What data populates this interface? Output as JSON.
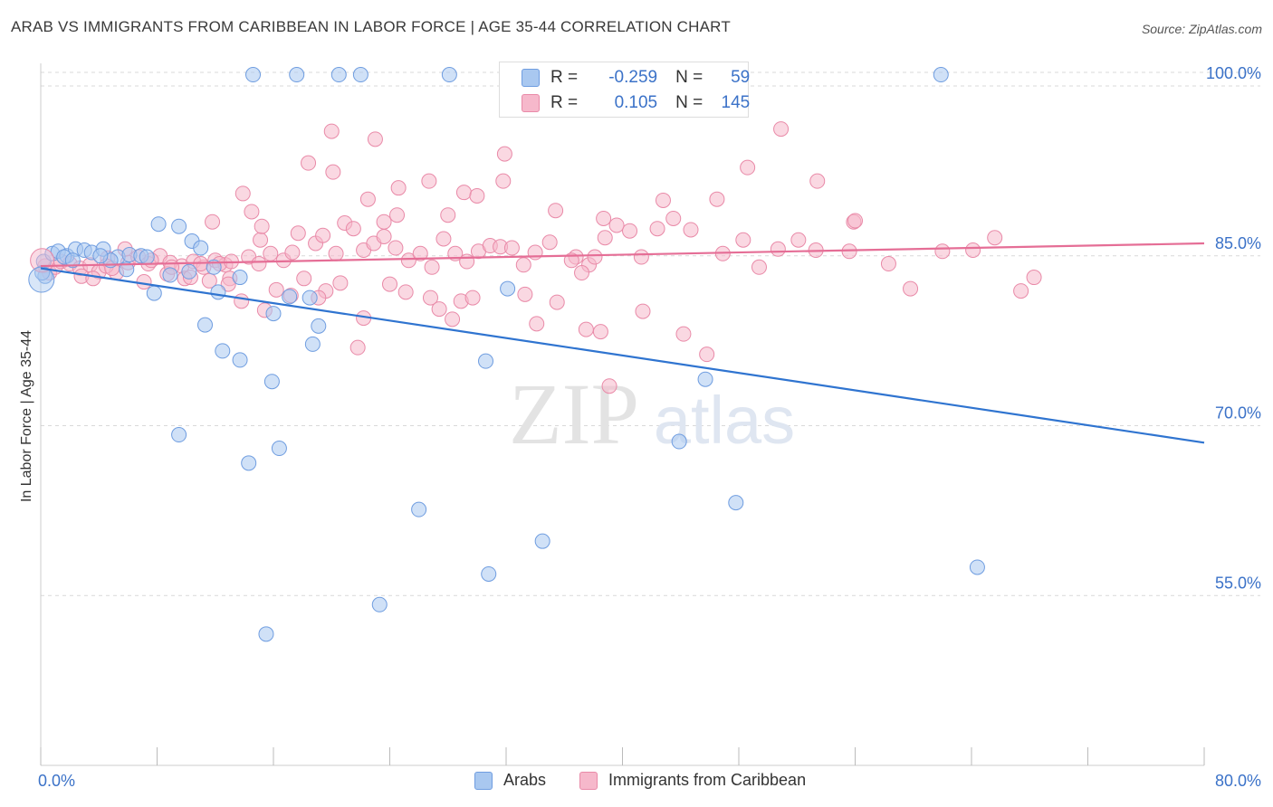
{
  "title": "ARAB VS IMMIGRANTS FROM CARIBBEAN IN LABOR FORCE | AGE 35-44 CORRELATION CHART",
  "source": "Source: ZipAtlas.com",
  "watermark": {
    "bold": "ZIP",
    "light": "atlas"
  },
  "colors": {
    "arab_fill": "#a9c8f0",
    "arab_stroke": "#6f9de0",
    "arab_line": "#2f74d0",
    "carib_fill": "#f6b8cb",
    "carib_stroke": "#e98aa8",
    "carib_line": "#e56e96",
    "tick_label": "#3b72c8",
    "grid": "#d9d9d9"
  },
  "stats_legend": [
    {
      "r_label": "R =",
      "r": "-0.259",
      "n_label": "N =",
      "n": "59",
      "series": "Arabs"
    },
    {
      "r_label": "R =",
      "r": "0.105",
      "n_label": "N =",
      "n": "145",
      "series": "Immigrants from Caribbean"
    }
  ],
  "chart_data": {
    "type": "scatter",
    "title": "ARAB VS IMMIGRANTS FROM CARIBBEAN IN LABOR FORCE | AGE 35-44 CORRELATION CHART",
    "xlabel": "",
    "ylabel": "In Labor Force | Age 35-44",
    "xlim": [
      0,
      80
    ],
    "ylim": [
      40,
      102
    ],
    "x_tick_labels": [
      "0.0%",
      "80.0%"
    ],
    "y_ticks": [
      55,
      70,
      85,
      100
    ],
    "y_tick_labels": [
      "55.0%",
      "70.0%",
      "85.0%",
      "100.0%"
    ],
    "grid": "horizontal dashed",
    "legend_position": "bottom",
    "series": [
      {
        "name": "Arabs",
        "trend": {
          "x": [
            0,
            80
          ],
          "y": [
            83.9,
            68.5
          ]
        },
        "points": [
          [
            0.2,
            84.5
          ],
          [
            0.3,
            83.2
          ],
          [
            0.8,
            85.2
          ],
          [
            1.2,
            85.4
          ],
          [
            1.8,
            85.0
          ],
          [
            2.4,
            85.6
          ],
          [
            3.0,
            85.5
          ],
          [
            3.5,
            85.3
          ],
          [
            4.3,
            85.6
          ],
          [
            5.3,
            84.9
          ],
          [
            6.1,
            85.1
          ],
          [
            6.9,
            85.0
          ],
          [
            8.1,
            87.8
          ],
          [
            9.5,
            87.6
          ],
          [
            10.4,
            86.3
          ],
          [
            4.8,
            84.6
          ],
          [
            5.9,
            83.8
          ],
          [
            7.3,
            84.9
          ],
          [
            8.9,
            83.3
          ],
          [
            10.2,
            83.6
          ],
          [
            11.0,
            85.7
          ],
          [
            11.9,
            84.0
          ],
          [
            13.7,
            83.1
          ],
          [
            7.8,
            81.7
          ],
          [
            12.2,
            81.8
          ],
          [
            17.1,
            81.4
          ],
          [
            18.5,
            81.3
          ],
          [
            16.0,
            79.9
          ],
          [
            11.3,
            78.9
          ],
          [
            19.1,
            78.8
          ],
          [
            18.7,
            77.2
          ],
          [
            12.5,
            76.6
          ],
          [
            13.7,
            75.8
          ],
          [
            15.9,
            73.9
          ],
          [
            30.6,
            75.7
          ],
          [
            45.7,
            74.1
          ],
          [
            32.1,
            82.1
          ],
          [
            9.5,
            69.2
          ],
          [
            16.4,
            68.0
          ],
          [
            14.3,
            66.7
          ],
          [
            43.9,
            68.6
          ],
          [
            47.8,
            63.2
          ],
          [
            26.0,
            62.6
          ],
          [
            34.5,
            59.8
          ],
          [
            30.8,
            56.9
          ],
          [
            64.4,
            57.5
          ],
          [
            23.3,
            54.2
          ],
          [
            15.5,
            51.6
          ],
          [
            14.6,
            101.0
          ],
          [
            17.6,
            101.0
          ],
          [
            20.5,
            101.0
          ],
          [
            22.0,
            101.0
          ],
          [
            28.1,
            101.0
          ],
          [
            47.0,
            101.0
          ],
          [
            61.9,
            101.0
          ],
          [
            1.6,
            84.9
          ],
          [
            2.2,
            84.6
          ],
          [
            4.1,
            85.0
          ],
          [
            0.1,
            83.5
          ]
        ]
      },
      {
        "name": "Immigrants from Caribbean",
        "trend": {
          "x": [
            0,
            80
          ],
          "y": [
            84.1,
            86.1
          ]
        },
        "points": [
          [
            0.3,
            84.1
          ],
          [
            0.6,
            83.5
          ],
          [
            1.0,
            84.0
          ],
          [
            1.4,
            84.5
          ],
          [
            2.0,
            84.3
          ],
          [
            2.7,
            83.9
          ],
          [
            3.4,
            84.2
          ],
          [
            4.0,
            83.6
          ],
          [
            4.6,
            84.8
          ],
          [
            5.2,
            83.5
          ],
          [
            6.0,
            84.4
          ],
          [
            6.7,
            84.9
          ],
          [
            7.4,
            84.3
          ],
          [
            8.2,
            85.0
          ],
          [
            8.9,
            84.4
          ],
          [
            9.7,
            84.1
          ],
          [
            10.5,
            84.5
          ],
          [
            11.2,
            84.0
          ],
          [
            12.0,
            84.6
          ],
          [
            12.7,
            84.2
          ],
          [
            2.8,
            83.2
          ],
          [
            3.6,
            83.0
          ],
          [
            4.5,
            84.1
          ],
          [
            5.8,
            85.6
          ],
          [
            7.1,
            82.7
          ],
          [
            8.7,
            83.4
          ],
          [
            9.9,
            83.0
          ],
          [
            11.6,
            82.8
          ],
          [
            12.3,
            84.3
          ],
          [
            13.1,
            84.5
          ],
          [
            14.3,
            84.9
          ],
          [
            15.1,
            86.4
          ],
          [
            15.8,
            85.2
          ],
          [
            16.7,
            84.6
          ],
          [
            17.3,
            85.3
          ],
          [
            18.1,
            83.0
          ],
          [
            18.9,
            86.1
          ],
          [
            19.6,
            81.9
          ],
          [
            20.3,
            85.2
          ],
          [
            20.9,
            87.9
          ],
          [
            21.5,
            87.4
          ],
          [
            22.2,
            85.5
          ],
          [
            22.9,
            86.1
          ],
          [
            23.6,
            86.7
          ],
          [
            24.4,
            85.7
          ],
          [
            25.3,
            84.6
          ],
          [
            26.1,
            85.2
          ],
          [
            26.9,
            84.0
          ],
          [
            27.7,
            86.5
          ],
          [
            28.5,
            85.2
          ],
          [
            29.3,
            84.5
          ],
          [
            30.1,
            85.4
          ],
          [
            30.9,
            85.9
          ],
          [
            31.6,
            85.8
          ],
          [
            32.4,
            85.7
          ],
          [
            33.2,
            84.2
          ],
          [
            34.0,
            85.3
          ],
          [
            35.0,
            86.2
          ],
          [
            36.8,
            84.9
          ],
          [
            37.7,
            84.2
          ],
          [
            38.8,
            86.6
          ],
          [
            39.6,
            87.7
          ],
          [
            40.5,
            87.2
          ],
          [
            41.3,
            84.9
          ],
          [
            42.4,
            87.4
          ],
          [
            43.5,
            88.3
          ],
          [
            44.7,
            87.3
          ],
          [
            46.9,
            85.2
          ],
          [
            48.3,
            86.4
          ],
          [
            49.4,
            84.0
          ],
          [
            50.7,
            85.6
          ],
          [
            52.1,
            86.4
          ],
          [
            53.3,
            85.5
          ],
          [
            55.9,
            88.0
          ],
          [
            58.3,
            84.3
          ],
          [
            62.0,
            85.4
          ],
          [
            65.6,
            86.6
          ],
          [
            68.3,
            83.1
          ],
          [
            13.9,
            90.5
          ],
          [
            17.7,
            87.0
          ],
          [
            19.4,
            86.8
          ],
          [
            22.5,
            90.0
          ],
          [
            24.6,
            91.0
          ],
          [
            26.7,
            91.6
          ],
          [
            29.1,
            90.6
          ],
          [
            30.0,
            90.3
          ],
          [
            31.8,
            91.6
          ],
          [
            35.4,
            89.0
          ],
          [
            38.7,
            88.3
          ],
          [
            42.8,
            89.9
          ],
          [
            46.5,
            90.0
          ],
          [
            48.6,
            92.8
          ],
          [
            50.9,
            96.2
          ],
          [
            18.4,
            93.2
          ],
          [
            20.1,
            92.4
          ],
          [
            23.6,
            88.0
          ],
          [
            24.5,
            88.6
          ],
          [
            14.5,
            88.9
          ],
          [
            15.2,
            87.6
          ],
          [
            11.8,
            88.0
          ],
          [
            28.0,
            88.6
          ],
          [
            31.9,
            94.0
          ],
          [
            53.4,
            91.6
          ],
          [
            23.0,
            95.3
          ],
          [
            20.0,
            96.0
          ],
          [
            55.6,
            85.4
          ],
          [
            56.0,
            88.1
          ],
          [
            59.8,
            82.1
          ],
          [
            64.1,
            85.5
          ],
          [
            67.4,
            81.9
          ],
          [
            7.6,
            84.6
          ],
          [
            10.3,
            83.1
          ],
          [
            11.0,
            84.3
          ],
          [
            13.0,
            83.0
          ],
          [
            13.8,
            81.0
          ],
          [
            15.4,
            80.2
          ],
          [
            16.2,
            82.0
          ],
          [
            17.2,
            81.5
          ],
          [
            19.1,
            81.3
          ],
          [
            20.6,
            82.6
          ],
          [
            22.2,
            79.5
          ],
          [
            21.8,
            76.9
          ],
          [
            24.0,
            82.5
          ],
          [
            25.1,
            81.8
          ],
          [
            26.8,
            81.3
          ],
          [
            27.4,
            80.3
          ],
          [
            28.3,
            79.4
          ],
          [
            28.9,
            81.0
          ],
          [
            29.7,
            81.3
          ],
          [
            33.3,
            81.6
          ],
          [
            34.1,
            79.0
          ],
          [
            35.5,
            80.9
          ],
          [
            37.5,
            78.5
          ],
          [
            38.5,
            78.3
          ],
          [
            39.1,
            73.5
          ],
          [
            41.4,
            80.1
          ],
          [
            44.2,
            78.1
          ],
          [
            45.8,
            76.3
          ],
          [
            37.2,
            83.5
          ],
          [
            38.1,
            84.9
          ],
          [
            36.5,
            84.6
          ],
          [
            12.9,
            82.5
          ],
          [
            9.0,
            84.0
          ],
          [
            15.0,
            84.3
          ],
          [
            4.9,
            83.9
          ]
        ]
      }
    ]
  },
  "bottom_legend": [
    {
      "label": "Arabs"
    },
    {
      "label": "Immigrants from Caribbean"
    }
  ]
}
